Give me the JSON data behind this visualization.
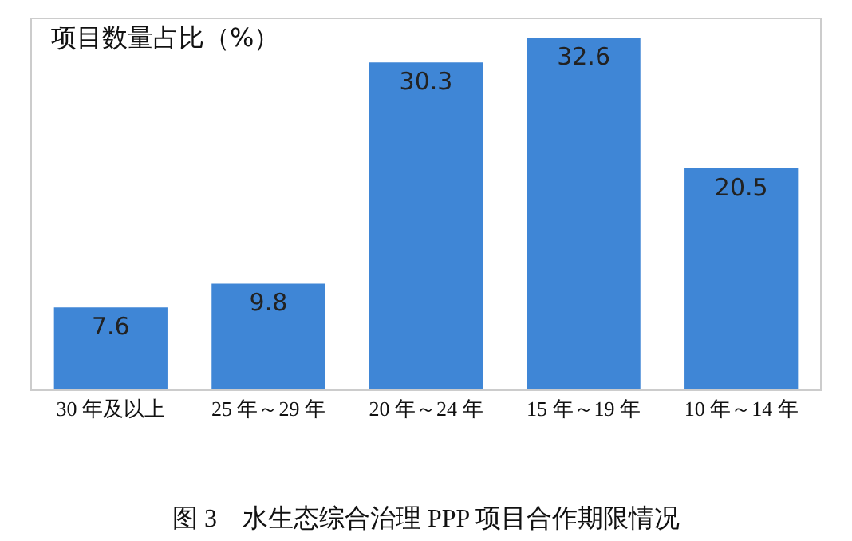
{
  "chart_data": {
    "type": "bar",
    "title": "项目数量占比（%）",
    "categories": [
      "30 年及以上",
      "25 年～29 年",
      "20 年～24 年",
      "15 年～19 年",
      "10 年～14 年"
    ],
    "values": [
      7.6,
      9.8,
      30.3,
      32.6,
      20.5
    ],
    "color": "#3f86d6",
    "data_labels": true,
    "grid": false,
    "legend": false,
    "annotations": [
      "图 3　水生态综合治理 PPP 项目合作期限情况"
    ]
  }
}
